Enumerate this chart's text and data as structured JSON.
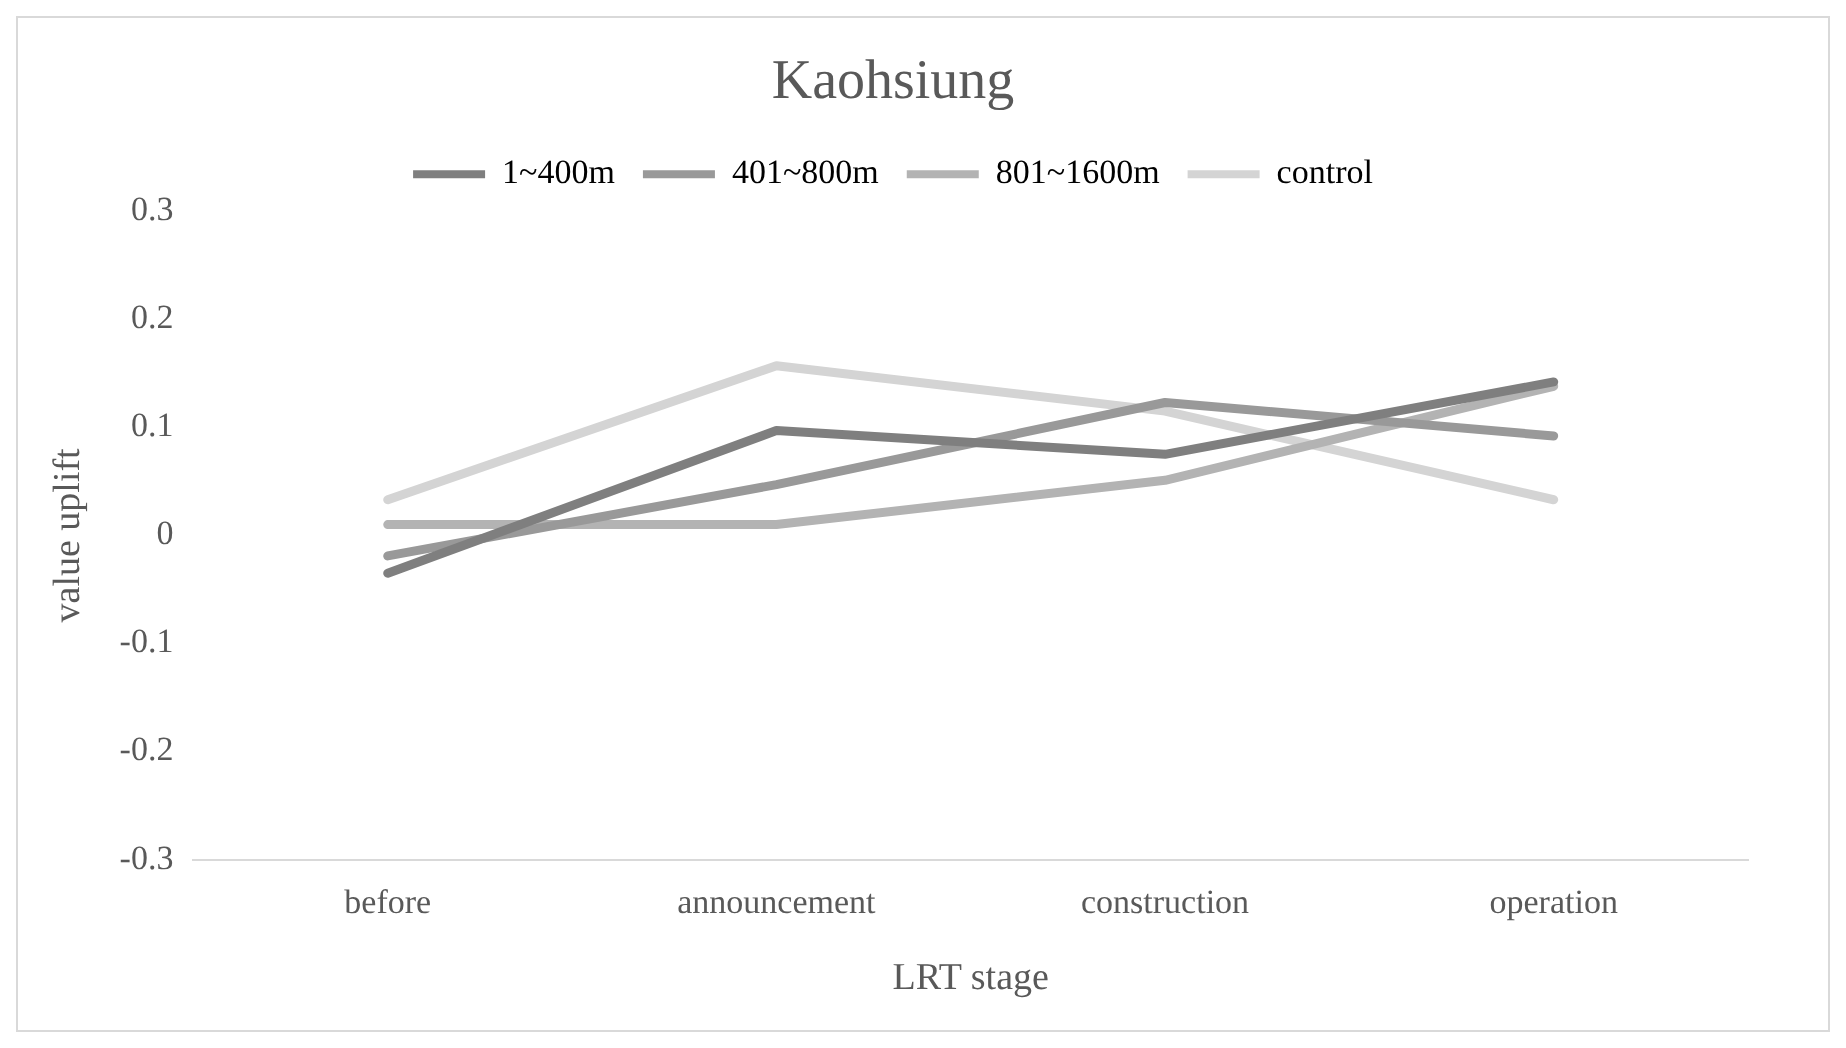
{
  "chart_data": {
    "type": "line",
    "title": "Kaohsiung",
    "xlabel": "LRT stage",
    "ylabel": "value uplift",
    "categories": [
      "before",
      "announcement",
      "construction",
      "operation"
    ],
    "series": [
      {
        "name": "1~400m",
        "color": "#7f7f7f",
        "values": [
          -0.035,
          0.097,
          0.075,
          0.142
        ]
      },
      {
        "name": "401~800m",
        "color": "#999999",
        "values": [
          -0.019,
          0.047,
          0.123,
          0.092
        ]
      },
      {
        "name": "801~1600m",
        "color": "#b3b3b3",
        "values": [
          0.01,
          0.01,
          0.051,
          0.138
        ]
      },
      {
        "name": "control",
        "color": "#d4d4d4",
        "values": [
          0.033,
          0.157,
          0.115,
          0.033
        ]
      }
    ],
    "ylim": [
      -0.3,
      0.3
    ],
    "yticks": [
      -0.3,
      -0.2,
      -0.1,
      0,
      0.1,
      0.2,
      0.3
    ],
    "grid": false,
    "legend": "top",
    "marker": "none",
    "line_style": "solid"
  }
}
